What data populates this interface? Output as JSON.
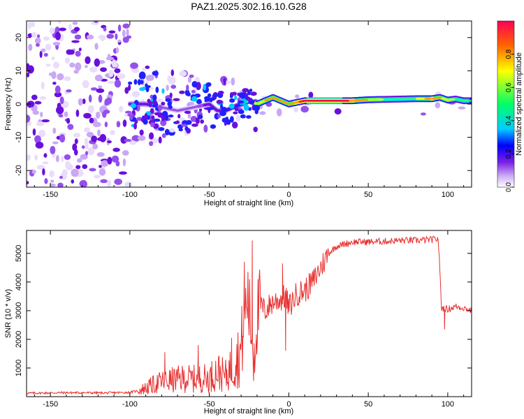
{
  "title": "PAZ1.2025.302.16.10.G28",
  "chart_data": [
    {
      "type": "heatmap",
      "xlabel": "Height of straight line (km)",
      "ylabel": "Frequency (Hz)",
      "xlim": [
        -165,
        115
      ],
      "ylim": [
        -25,
        25
      ],
      "xticks": [
        -150,
        -100,
        -50,
        0,
        50,
        100
      ],
      "yticks": [
        -20,
        -10,
        0,
        10,
        20
      ],
      "colorbar": {
        "label": "Normalized spectral amplitude",
        "range": [
          0,
          1
        ],
        "ticks": [
          0.0,
          0.2,
          0.4,
          0.6,
          0.8
        ],
        "colors": [
          "#ffffff",
          "#c9a8f5",
          "#7a1fe6",
          "#0000ff",
          "#00ccff",
          "#00ff66",
          "#ffff00",
          "#ff6600",
          "#ff0033"
        ]
      },
      "ridge": {
        "x": [
          -100,
          -95,
          -90,
          -80,
          -70,
          -60,
          -50,
          -45,
          -40,
          -35,
          -30,
          -25,
          -20,
          -15,
          -10,
          -5,
          0,
          10,
          20,
          30,
          40,
          50,
          60,
          70,
          80,
          90,
          95,
          100,
          105,
          110,
          115
        ],
        "freq": [
          0,
          0,
          0,
          -1,
          -2,
          -1,
          0,
          -2,
          -2,
          -1,
          0,
          1,
          0,
          1,
          2,
          1,
          0,
          1,
          1,
          1,
          1,
          1.3,
          1.4,
          1.5,
          1.6,
          1.6,
          2.0,
          1.2,
          1.5,
          1.0,
          1.0
        ],
        "amplitude": [
          0.15,
          0.2,
          0.15,
          0.12,
          0.12,
          0.12,
          0.15,
          0.15,
          0.2,
          0.25,
          0.3,
          0.5,
          0.6,
          0.7,
          0.7,
          0.7,
          0.75,
          0.85,
          0.9,
          0.9,
          0.8,
          0.7,
          0.55,
          0.5,
          0.55,
          0.8,
          0.75,
          0.6,
          0.55,
          0.5,
          0.4
        ]
      }
    },
    {
      "type": "line",
      "xlabel": "Height of straight line (km)",
      "ylabel": "SNR (10 * v/v)",
      "xlim": [
        -165,
        115
      ],
      "ylim": [
        0,
        5800
      ],
      "xticks": [
        -150,
        -100,
        -50,
        0,
        50,
        100
      ],
      "yticks": [
        1000,
        2000,
        3000,
        4000,
        5000
      ],
      "series": [
        {
          "name": "SNR",
          "color": "#e83030",
          "x": [
            -165,
            -140,
            -115,
            -100,
            -95,
            -90,
            -85,
            -80,
            -75,
            -70,
            -65,
            -60,
            -55,
            -50,
            -45,
            -40,
            -35,
            -30,
            -28,
            -26,
            -24,
            -22,
            -20,
            -18,
            -15,
            -10,
            -5,
            -2,
            0,
            5,
            10,
            15,
            20,
            25,
            30,
            40,
            50,
            60,
            70,
            80,
            90,
            94,
            95,
            96,
            100,
            105,
            110,
            115
          ],
          "y": [
            120,
            140,
            130,
            150,
            200,
            300,
            420,
            520,
            560,
            600,
            640,
            620,
            640,
            650,
            900,
            700,
            1100,
            1600,
            2800,
            3500,
            2500,
            1500,
            2800,
            3200,
            3000,
            3300,
            3400,
            3500,
            3100,
            3600,
            3700,
            4000,
            4500,
            5000,
            5250,
            5400,
            5400,
            5420,
            5450,
            5450,
            5480,
            5500,
            4500,
            3100,
            3050,
            3150,
            3100,
            3000
          ],
          "spikes": [
            {
              "x": -78,
              "y": 1550
            },
            {
              "x": -57,
              "y": 1800
            },
            {
              "x": -36,
              "y": 2050
            },
            {
              "x": -28,
              "y": 4700
            },
            {
              "x": -23,
              "y": 5450
            },
            {
              "x": -4,
              "y": 4650
            },
            {
              "x": -2,
              "y": 1600
            },
            {
              "x": 98,
              "y": 2350
            }
          ]
        }
      ]
    }
  ]
}
